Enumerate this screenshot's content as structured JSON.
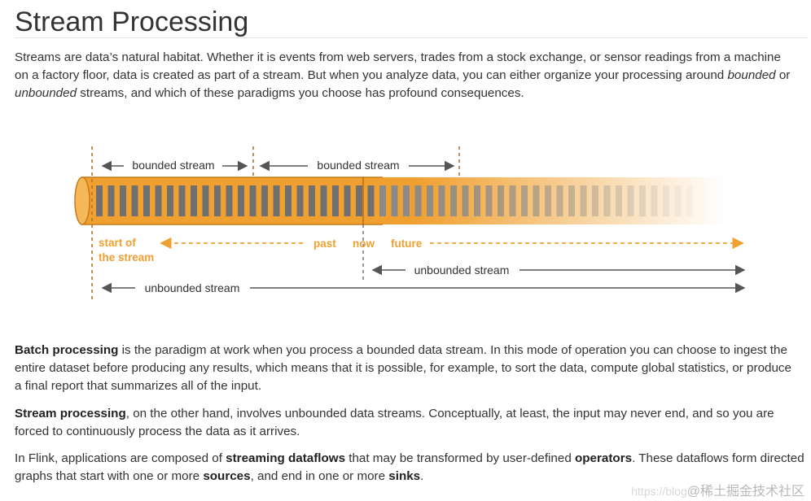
{
  "title": "Stream Processing",
  "intro": {
    "t1": "Streams are data’s natural habitat. Whether it is events from web servers, trades from a stock exchange, or sensor readings from a machine on a factory floor, data is created as part of a stream. But when you analyze data, you can either organize your processing around ",
    "em1": "bounded",
    "t2": " or ",
    "em2": "unbounded",
    "t3": " streams, and which of these paradigms you choose has profound consequences."
  },
  "diagram": {
    "bounded_label_1": "bounded stream",
    "bounded_label_2": "bounded stream",
    "start_line1": "start of",
    "start_line2": "the stream",
    "past": "past",
    "now": "now",
    "future": "future",
    "unbounded_label_1": "unbounded stream",
    "unbounded_label_2": "unbounded stream",
    "orange": "#f0a030",
    "dark_orange": "#c77a18",
    "arrow_gray": "#555555"
  },
  "batch": {
    "b": "Batch processing",
    "t": " is the paradigm at work when you process a bounded data stream. In this mode of operation you can choose to ingest the entire dataset before producing any results, which means that it is possible, for example, to sort the data, compute global statistics, or produce a final report that summarizes all of the input."
  },
  "stream": {
    "b": "Stream processing",
    "t": ", on the other hand, involves unbounded data streams. Conceptually, at least, the input may never end, and so you are forced to continuously process the data as it arrives."
  },
  "flink": {
    "t1": "In Flink, applications are composed of ",
    "b1": "streaming dataflows",
    "t2": " that may be transformed by user-defined ",
    "b2": "operators",
    "t3": ". These dataflows form directed graphs that start with one or more ",
    "b3": "sources",
    "t4": ", and end in one or more ",
    "b4": "sinks",
    "t5": "."
  },
  "watermark": {
    "faint": "https://blog",
    "text": "@稀土掘金技术社区"
  }
}
